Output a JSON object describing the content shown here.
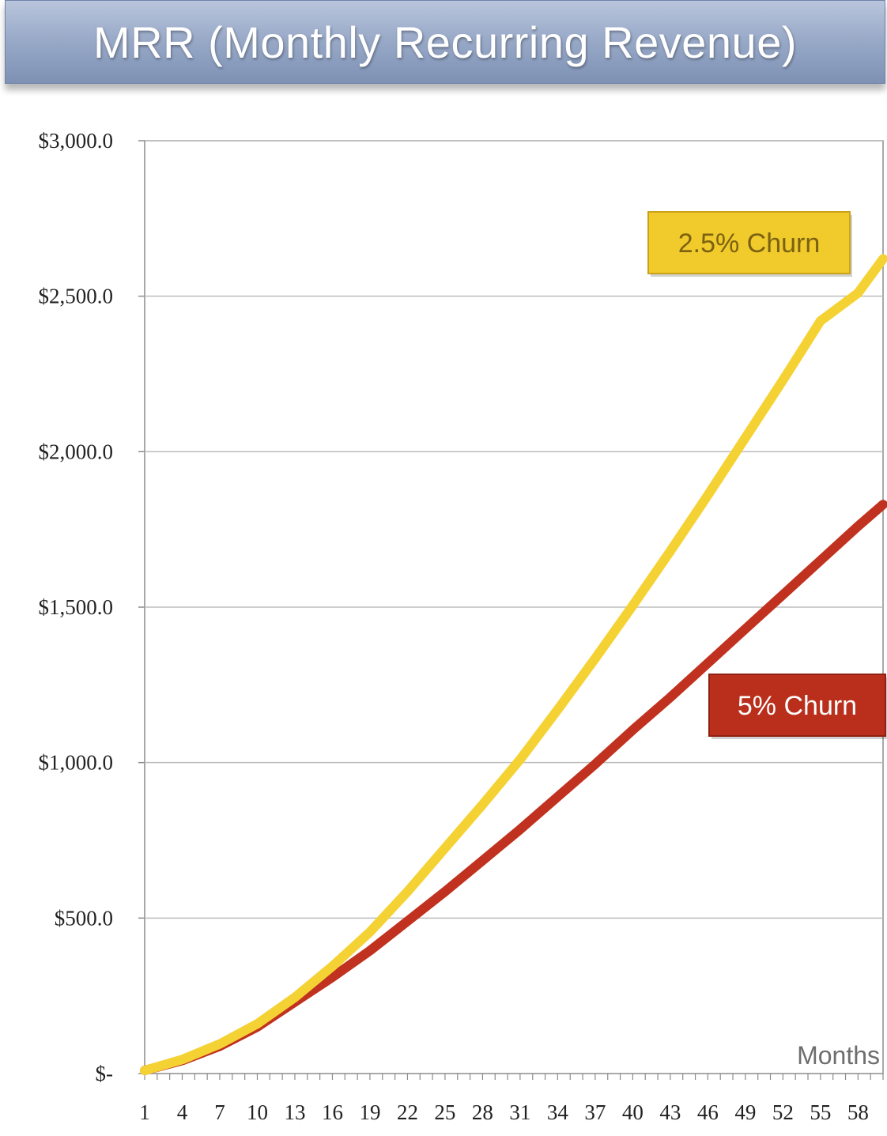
{
  "chart_data": {
    "type": "line",
    "title": "MRR (Monthly Recurring Revenue)",
    "xlabel": "Months",
    "ylabel": "",
    "ylim": [
      0,
      3000
    ],
    "xlim": [
      1,
      60
    ],
    "y_ticks": [
      0,
      500,
      1000,
      1500,
      2000,
      2500,
      3000
    ],
    "y_tick_labels": [
      "$-",
      "$500.0",
      "$1,000.0",
      "$1,500.0",
      "$2,000.0",
      "$2,500.0",
      "$3,000.0"
    ],
    "x_tick_labels": [
      "1",
      "4",
      "7",
      "10",
      "13",
      "16",
      "19",
      "22",
      "25",
      "28",
      "31",
      "34",
      "37",
      "40",
      "43",
      "46",
      "49",
      "52",
      "55",
      "58"
    ],
    "grid": true,
    "series": [
      {
        "name": "2.5% Churn",
        "color": "#f5d234",
        "x": [
          1,
          4,
          7,
          10,
          13,
          16,
          19,
          22,
          25,
          28,
          31,
          34,
          37,
          40,
          43,
          46,
          49,
          52,
          55,
          58,
          60
        ],
        "values": [
          10,
          45,
          95,
          160,
          245,
          345,
          455,
          585,
          725,
          865,
          1010,
          1170,
          1335,
          1505,
          1680,
          1860,
          2045,
          2230,
          2420,
          2510,
          2620
        ]
      },
      {
        "name": "5% Churn",
        "color": "#c0321f",
        "x": [
          1,
          4,
          7,
          10,
          13,
          16,
          19,
          22,
          25,
          28,
          31,
          34,
          37,
          40,
          43,
          46,
          49,
          52,
          55,
          58,
          60
        ],
        "values": [
          10,
          42,
          88,
          150,
          230,
          310,
          395,
          490,
          585,
          685,
          785,
          890,
          995,
          1105,
          1210,
          1320,
          1430,
          1540,
          1650,
          1760,
          1830
        ]
      }
    ],
    "annotations": [
      {
        "text": "2.5% Churn",
        "series": "2.5% Churn",
        "fill": "#f1ca2c",
        "stroke": "#caa21a",
        "text_color": "#7a6212"
      },
      {
        "text": "5% Churn",
        "series": "5% Churn",
        "fill": "#b92f1c",
        "stroke": "#8f2012",
        "text_color": "#ffffff"
      }
    ]
  }
}
